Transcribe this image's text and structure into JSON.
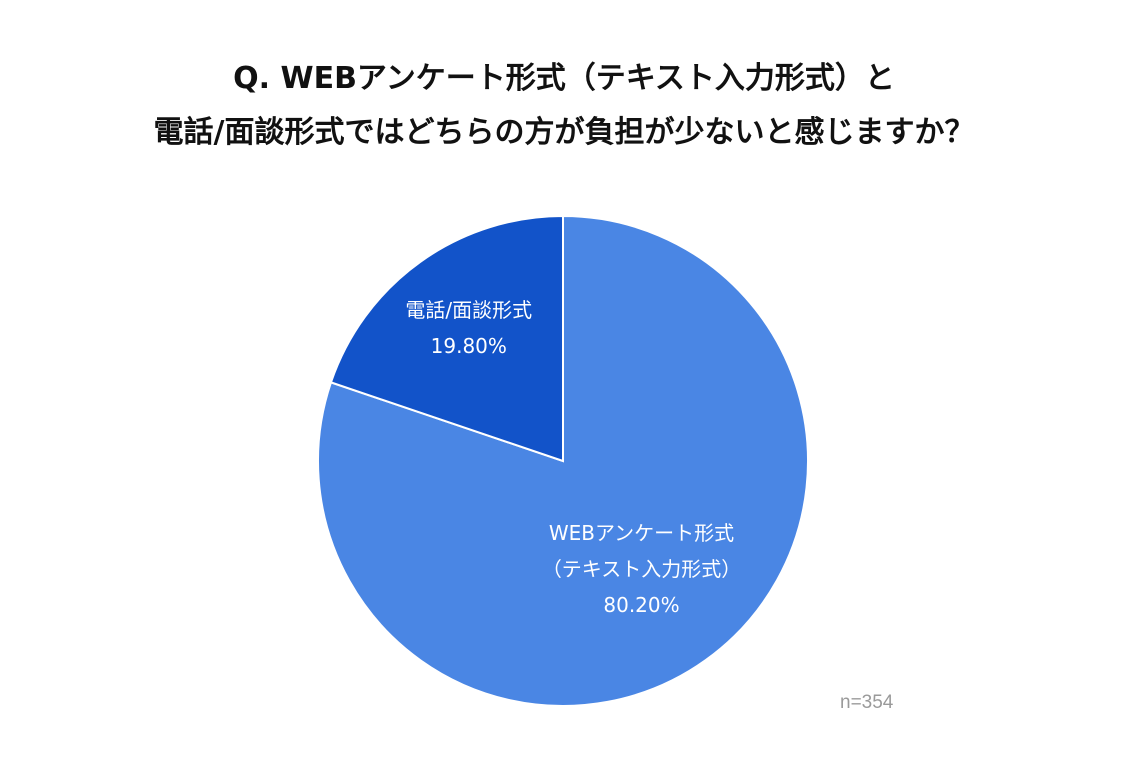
{
  "title": {
    "line1": "Q. WEBアンケート形式（テキスト入力形式）と",
    "line2": "電話/面談形式ではどちらの方が負担が少ないと感じますか？"
  },
  "chart_data": {
    "type": "pie",
    "title": "Q. WEBアンケート形式（テキスト入力形式）と電話/面談形式ではどちらの方が負担が少ないと感じますか？",
    "start_angle": "12 o'clock",
    "direction": "clockwise",
    "slices": [
      {
        "label_lines": [
          "WEBアンケート形式",
          "（テキスト入力形式）"
        ],
        "value": 80.2,
        "value_label": "80.20%",
        "color": "#4a86e4"
      },
      {
        "label_lines": [
          "電話/面談形式"
        ],
        "value": 19.8,
        "value_label": "19.80%",
        "color": "#1253c9"
      }
    ],
    "sample_size": "n=354"
  }
}
